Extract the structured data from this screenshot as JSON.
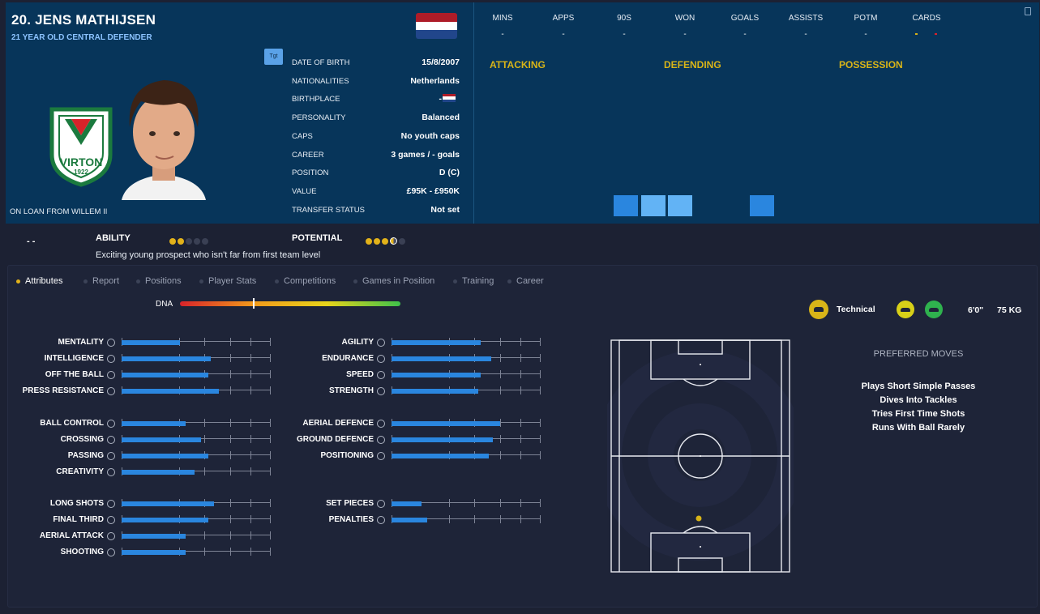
{
  "player": {
    "title": "20. JENS MATHIJSEN",
    "subtitle": "21 YEAR OLD  CENTRAL DEFENDER",
    "loan": "ON LOAN FROM WILLEM II",
    "club_name": "VIRTON",
    "club_year": "1922",
    "tgt": "Tgt"
  },
  "info": [
    {
      "k": "DATE OF BIRTH",
      "v": "15/8/2007"
    },
    {
      "k": "NATIONALITIES",
      "v": "Netherlands"
    },
    {
      "k": "BIRTHPLACE",
      "v": "-"
    },
    {
      "k": "PERSONALITY",
      "v": "Balanced"
    },
    {
      "k": "CAPS",
      "v": "No youth caps"
    },
    {
      "k": "CAREER",
      "v": "3  games /     -  goals"
    },
    {
      "k": "POSITION",
      "v": "D (C)"
    },
    {
      "k": "VALUE",
      "v": "£95K - £950K"
    },
    {
      "k": "TRANSFER STATUS",
      "v": "Not set"
    }
  ],
  "stats": {
    "headers": [
      "MINS",
      "APPS",
      "90S",
      "WON",
      "GOALS",
      "ASSISTS",
      "POTM",
      "CARDS"
    ],
    "values": [
      "-",
      "-",
      "-",
      "-",
      "-",
      "-",
      "-",
      ""
    ]
  },
  "sections": [
    "ATTACKING",
    "DEFENDING",
    "POSSESSION"
  ],
  "ability": {
    "label": "ABILITY",
    "potential_label": "POTENTIAL",
    "description": "Exciting young prospect who isn't far from first team level",
    "ability_stars": 2,
    "potential_stars": 3.5,
    "dash": "-  -"
  },
  "tabs": [
    "Attributes",
    "Report",
    "Positions",
    "Player Stats",
    "Competitions",
    "Games in Position",
    "Training",
    "Career"
  ],
  "dna": {
    "label": "DNA",
    "marker": 0.33
  },
  "profile": {
    "style": "Technical",
    "height": "6'0\"",
    "weight": "75 KG"
  },
  "attrs_left": [
    [
      {
        "n": "MENTALITY",
        "v": 0.39
      },
      {
        "n": "INTELLIGENCE",
        "v": 0.6
      },
      {
        "n": "OFF THE BALL",
        "v": 0.58
      },
      {
        "n": "PRESS RESISTANCE",
        "v": 0.65
      }
    ],
    [
      {
        "n": "BALL CONTROL",
        "v": 0.43
      },
      {
        "n": "CROSSING",
        "v": 0.53
      },
      {
        "n": "PASSING",
        "v": 0.58
      },
      {
        "n": "CREATIVITY",
        "v": 0.49
      }
    ],
    [
      {
        "n": "LONG SHOTS",
        "v": 0.62
      },
      {
        "n": "FINAL THIRD",
        "v": 0.58
      },
      {
        "n": "AERIAL ATTACK",
        "v": 0.43
      },
      {
        "n": "SHOOTING",
        "v": 0.43
      }
    ]
  ],
  "attrs_right": [
    [
      {
        "n": "AGILITY",
        "v": 0.6
      },
      {
        "n": "ENDURANCE",
        "v": 0.67
      },
      {
        "n": "SPEED",
        "v": 0.6
      },
      {
        "n": "STRENGTH",
        "v": 0.58
      }
    ],
    [
      {
        "n": "AERIAL DEFENCE",
        "v": 0.73
      },
      {
        "n": "GROUND DEFENCE",
        "v": 0.68
      },
      {
        "n": "POSITIONING",
        "v": 0.65
      }
    ],
    [
      {
        "n": "SET PIECES",
        "v": 0.2
      },
      {
        "n": "PENALTIES",
        "v": 0.24
      }
    ]
  ],
  "preferred_moves": {
    "title": "PREFERRED MOVES",
    "items": [
      "Plays Short Simple Passes",
      "Dives Into Tackles",
      "Tries First Time Shots",
      "Runs With Ball Rarely"
    ]
  },
  "colors": {
    "accent": "#2a86df",
    "gold": "#d8b418",
    "header": "#07355a"
  }
}
